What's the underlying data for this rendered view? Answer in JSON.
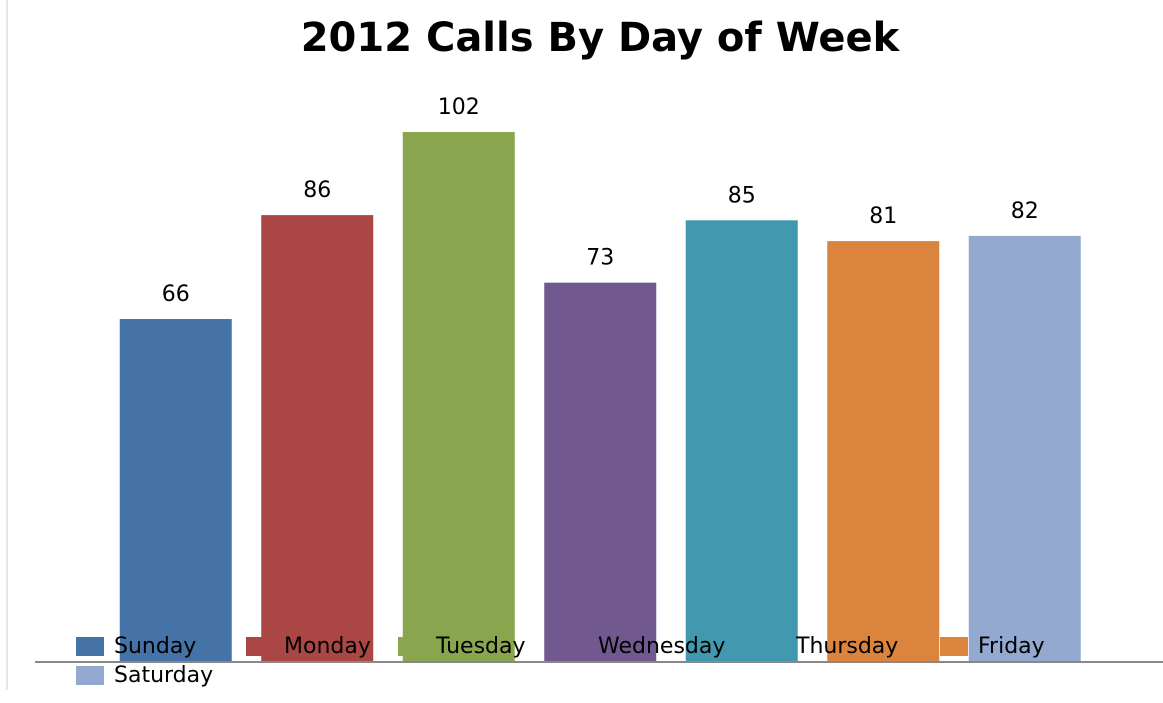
{
  "chart_data": {
    "type": "bar",
    "title": "2012 Calls By Day of Week",
    "categories": [
      "Sunday",
      "Monday",
      "Tuesday",
      "Wednesday",
      "Thursday",
      "Friday",
      "Saturday"
    ],
    "values": [
      66,
      86,
      102,
      73,
      85,
      81,
      82
    ],
    "colors": [
      "#4572a7",
      "#aa4643",
      "#89a54e",
      "#71588f",
      "#4198af",
      "#db843d",
      "#93a9cf"
    ],
    "ylim": [
      0,
      110
    ]
  }
}
